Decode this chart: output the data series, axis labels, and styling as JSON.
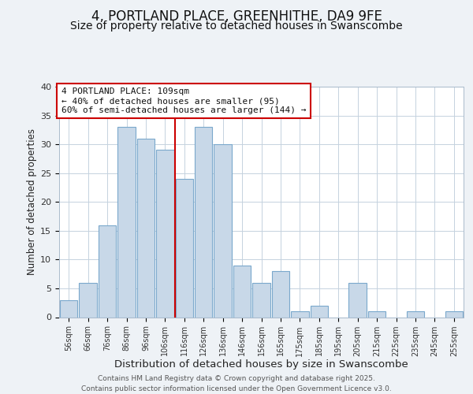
{
  "title": "4, PORTLAND PLACE, GREENHITHE, DA9 9FE",
  "subtitle": "Size of property relative to detached houses in Swanscombe",
  "xlabel": "Distribution of detached houses by size in Swanscombe",
  "ylabel": "Number of detached properties",
  "bar_labels": [
    "56sqm",
    "66sqm",
    "76sqm",
    "86sqm",
    "96sqm",
    "106sqm",
    "116sqm",
    "126sqm",
    "136sqm",
    "146sqm",
    "156sqm",
    "165sqm",
    "175sqm",
    "185sqm",
    "195sqm",
    "205sqm",
    "215sqm",
    "225sqm",
    "235sqm",
    "245sqm",
    "255sqm"
  ],
  "bar_values": [
    3,
    6,
    16,
    33,
    31,
    29,
    24,
    33,
    30,
    9,
    6,
    8,
    1,
    2,
    0,
    6,
    1,
    0,
    1,
    0,
    1
  ],
  "bar_color": "#c8d8e8",
  "bar_edge_color": "#7aa8cc",
  "background_color": "#eef2f6",
  "plot_bg_color": "#ffffff",
  "grid_color": "#c5d2de",
  "vline_x": 5.5,
  "vline_color": "#cc0000",
  "annotation_box_text": "4 PORTLAND PLACE: 109sqm\n← 40% of detached houses are smaller (95)\n60% of semi-detached houses are larger (144) →",
  "ylim": [
    0,
    40
  ],
  "yticks": [
    0,
    5,
    10,
    15,
    20,
    25,
    30,
    35,
    40
  ],
  "footer_line1": "Contains HM Land Registry data © Crown copyright and database right 2025.",
  "footer_line2": "Contains public sector information licensed under the Open Government Licence v3.0.",
  "title_fontsize": 12,
  "subtitle_fontsize": 10,
  "xlabel_fontsize": 9.5,
  "ylabel_fontsize": 8.5,
  "ann_fontsize": 8
}
